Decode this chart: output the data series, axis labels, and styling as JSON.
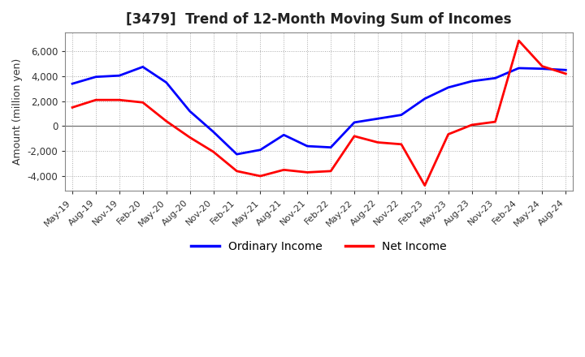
{
  "title": "[3479]  Trend of 12-Month Moving Sum of Incomes",
  "ylabel": "Amount (million yen)",
  "ylim": [
    -5200,
    7500
  ],
  "yticks": [
    -4000,
    -2000,
    0,
    2000,
    4000,
    6000
  ],
  "background_color": "#ffffff",
  "plot_bg_color": "#ffffff",
  "grid_color": "#aaaaaa",
  "title_fontsize": 12,
  "axis_fontsize": 9,
  "legend_fontsize": 10,
  "line_width": 2.0,
  "ordinary_income_color": "#0000ff",
  "net_income_color": "#ff0000",
  "x_labels": [
    "May-19",
    "Aug-19",
    "Nov-19",
    "Feb-20",
    "May-20",
    "Aug-20",
    "Nov-20",
    "Feb-21",
    "May-21",
    "Aug-21",
    "Nov-21",
    "Feb-22",
    "May-22",
    "Aug-22",
    "Nov-22",
    "Feb-23",
    "May-23",
    "Aug-23",
    "Nov-23",
    "Feb-24",
    "May-24",
    "Aug-24"
  ],
  "ordinary_income": [
    3400,
    3950,
    4050,
    4750,
    3500,
    1200,
    -450,
    -2250,
    -1900,
    -700,
    -1600,
    -1700,
    300,
    600,
    900,
    2200,
    3100,
    3600,
    3850,
    4650,
    4600,
    4500
  ],
  "net_income": [
    1500,
    2100,
    2100,
    1900,
    400,
    -900,
    -2050,
    -3600,
    -4000,
    -3500,
    -3700,
    -3600,
    -800,
    -1300,
    -1450,
    -4750,
    -650,
    100,
    350,
    6850,
    4800,
    4200
  ]
}
